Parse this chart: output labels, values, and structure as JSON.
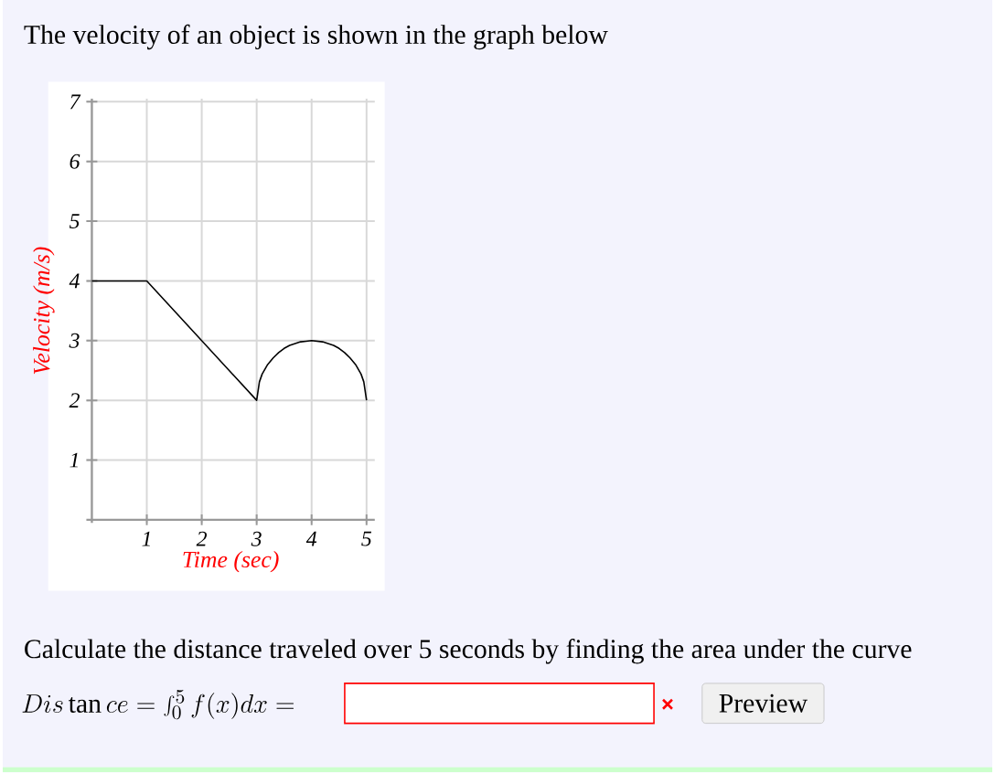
{
  "chart_data": {
    "type": "line",
    "title": "The velocity of an object is shown in the graph below",
    "xlabel": "Time (sec)",
    "ylabel": "Velocity (m/s)",
    "annotations": [
      "Calculate the distance traveled over 5 seconds by finding the area under the curve",
      "Dis\\tan ce = \\int_0^5 f(x)dx=",
      "Preview"
    ],
    "series": [
      {
        "color": "#000000",
        "x": [
          0,
          1,
          3,
          3.05,
          3.1,
          3.2,
          3.3,
          3.4,
          3.5,
          3.6,
          3.7,
          3.8,
          3.9,
          4,
          4.1,
          4.2,
          4.3,
          4.4,
          4.5,
          4.6,
          4.7,
          4.8,
          4.9,
          4.95,
          5
        ],
        "values": [
          4,
          4,
          2,
          2.31,
          2.44,
          2.6,
          2.71,
          2.8,
          2.87,
          2.92,
          2.95,
          2.98,
          2.99,
          3,
          2.99,
          2.98,
          2.95,
          2.92,
          2.87,
          2.8,
          2.71,
          2.6,
          2.44,
          2.31,
          2
        ]
      }
    ],
    "xlim": [
      -0.1,
      5.15
    ],
    "ylim": [
      -0.05,
      7.05
    ],
    "xticks": [
      1,
      2,
      3,
      4,
      5
    ],
    "yticks": [
      1,
      2,
      3,
      4,
      5,
      6,
      7
    ],
    "grid": true,
    "marker": "none",
    "line_style": "solid"
  }
}
